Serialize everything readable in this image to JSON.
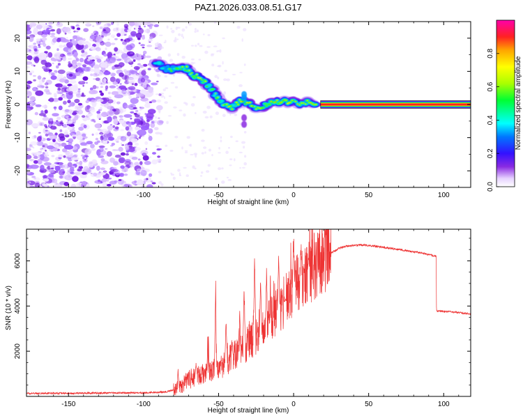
{
  "title": "PAZ1.2026.033.08.51.G17",
  "chart_data": [
    {
      "type": "heatmap",
      "name": "spectrogram",
      "xlabel": "Height of straight line (km)",
      "ylabel": "Frequency (Hz)",
      "xlim": [
        -178,
        118
      ],
      "ylim": [
        -25,
        25
      ],
      "xticks": [
        -150,
        -100,
        -50,
        0,
        50,
        100
      ],
      "yticks": [
        -20,
        -10,
        0,
        10,
        20
      ],
      "colorbar": {
        "label": "Normalized spectral amplitude",
        "range": [
          0,
          1
        ],
        "ticks": [
          0.0,
          0.2,
          0.4,
          0.6,
          0.8
        ],
        "tick_labels": [
          "0.0",
          "0.2",
          "0.4",
          "0.6",
          "0.8"
        ]
      },
      "signal_track": [
        {
          "x": -92,
          "y": 12.5
        },
        {
          "x": -85,
          "y": 11
        },
        {
          "x": -78,
          "y": 10.5
        },
        {
          "x": -72,
          "y": 11
        },
        {
          "x": -67,
          "y": 9
        },
        {
          "x": -62,
          "y": 8
        },
        {
          "x": -57,
          "y": 5.5
        },
        {
          "x": -52,
          "y": 3
        },
        {
          "x": -47,
          "y": 0.5
        },
        {
          "x": -42,
          "y": -1
        },
        {
          "x": -36,
          "y": 1
        },
        {
          "x": -30,
          "y": 0
        },
        {
          "x": -24,
          "y": -1
        },
        {
          "x": -18,
          "y": 0
        },
        {
          "x": -12,
          "y": 0.5
        },
        {
          "x": -6,
          "y": 1
        },
        {
          "x": 0,
          "y": 0.5
        },
        {
          "x": 8,
          "y": 0.5
        },
        {
          "x": 15,
          "y": 0
        }
      ],
      "carrier_line": {
        "x_start": 18,
        "x_end": 118,
        "y": 0,
        "amplitude": 1.0
      }
    },
    {
      "type": "line",
      "name": "snr",
      "xlabel": "Height of straight line (km)",
      "ylabel": "SNR (10 * v/v)",
      "xlim": [
        -178,
        118
      ],
      "ylim": [
        0,
        7400
      ],
      "xticks": [
        -150,
        -100,
        -50,
        0,
        50,
        100
      ],
      "yticks": [
        2000,
        4000,
        6000
      ],
      "color": "#ee3333",
      "envelope": [
        {
          "x": -178,
          "y": 130
        },
        {
          "x": -100,
          "y": 160
        },
        {
          "x": -85,
          "y": 200
        },
        {
          "x": -78,
          "y": 320
        },
        {
          "x": -70,
          "y": 750
        },
        {
          "x": -60,
          "y": 1000
        },
        {
          "x": -55,
          "y": 1150
        },
        {
          "x": -50,
          "y": 1250
        },
        {
          "x": -45,
          "y": 1500
        },
        {
          "x": -40,
          "y": 1800
        },
        {
          "x": -35,
          "y": 2000
        },
        {
          "x": -30,
          "y": 2300
        },
        {
          "x": -25,
          "y": 2700
        },
        {
          "x": -20,
          "y": 3100
        },
        {
          "x": -15,
          "y": 3400
        },
        {
          "x": -10,
          "y": 3900
        },
        {
          "x": -5,
          "y": 4300
        },
        {
          "x": 0,
          "y": 4800
        },
        {
          "x": 5,
          "y": 5200
        },
        {
          "x": 10,
          "y": 5500
        },
        {
          "x": 15,
          "y": 5850
        },
        {
          "x": 20,
          "y": 6150
        },
        {
          "x": 25,
          "y": 6350
        },
        {
          "x": 30,
          "y": 6550
        },
        {
          "x": 35,
          "y": 6650
        },
        {
          "x": 45,
          "y": 6700
        },
        {
          "x": 55,
          "y": 6650
        },
        {
          "x": 65,
          "y": 6550
        },
        {
          "x": 75,
          "y": 6450
        },
        {
          "x": 85,
          "y": 6350
        },
        {
          "x": 95,
          "y": 6200
        },
        {
          "x": 95.2,
          "y": 3780
        },
        {
          "x": 105,
          "y": 3740
        },
        {
          "x": 118,
          "y": 3650
        }
      ],
      "peaks": [
        {
          "x": -77,
          "y": 1250
        },
        {
          "x": -65,
          "y": 1550
        },
        {
          "x": -57,
          "y": 3350
        },
        {
          "x": -52,
          "y": 5500
        },
        {
          "x": -45,
          "y": 3800
        },
        {
          "x": -41,
          "y": 2400
        },
        {
          "x": -36,
          "y": 4200
        },
        {
          "x": -33,
          "y": 5400
        },
        {
          "x": -26,
          "y": 6600
        },
        {
          "x": -22,
          "y": 5700
        },
        {
          "x": -18,
          "y": 5900
        },
        {
          "x": -10,
          "y": 6500
        },
        {
          "x": -6,
          "y": 4200
        },
        {
          "x": 0,
          "y": 7400
        },
        {
          "x": 5,
          "y": 6900
        },
        {
          "x": 10,
          "y": 6300
        }
      ]
    }
  ]
}
